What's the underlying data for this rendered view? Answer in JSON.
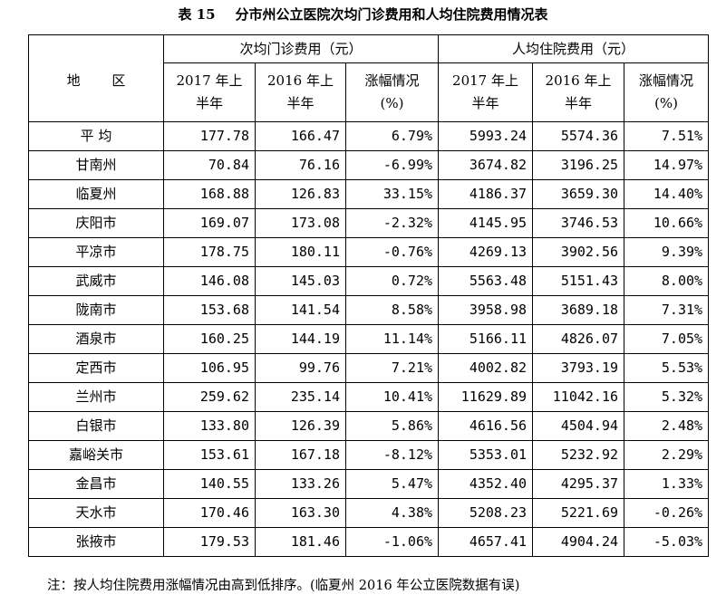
{
  "title": {
    "number": "表 15",
    "text": "分市州公立医院次均门诊费用和人均住院费用情况表"
  },
  "header": {
    "region_label": "地 区",
    "outpatient_group": "次均门诊费用（元）",
    "inpatient_group": "人均住院费用（元）",
    "col_2017": [
      "2017 年上",
      "半年"
    ],
    "col_2016": [
      "2016 年上",
      "半年"
    ],
    "col_change": [
      "涨幅情况",
      "(%)"
    ]
  },
  "rows": [
    {
      "region": "平  均",
      "op2017": "177.78",
      "op2016": "166.47",
      "opchg": "6.79%",
      "ip2017": "5993.24",
      "ip2016": "5574.36",
      "ipchg": "7.51%"
    },
    {
      "region": "甘南州",
      "op2017": "70.84",
      "op2016": "76.16",
      "opchg": "-6.99%",
      "ip2017": "3674.82",
      "ip2016": "3196.25",
      "ipchg": "14.97%"
    },
    {
      "region": "临夏州",
      "op2017": "168.88",
      "op2016": "126.83",
      "opchg": "33.15%",
      "ip2017": "4186.37",
      "ip2016": "3659.30",
      "ipchg": "14.40%"
    },
    {
      "region": "庆阳市",
      "op2017": "169.07",
      "op2016": "173.08",
      "opchg": "-2.32%",
      "ip2017": "4145.95",
      "ip2016": "3746.53",
      "ipchg": "10.66%"
    },
    {
      "region": "平凉市",
      "op2017": "178.75",
      "op2016": "180.11",
      "opchg": "-0.76%",
      "ip2017": "4269.13",
      "ip2016": "3902.56",
      "ipchg": "9.39%"
    },
    {
      "region": "武威市",
      "op2017": "146.08",
      "op2016": "145.03",
      "opchg": "0.72%",
      "ip2017": "5563.48",
      "ip2016": "5151.43",
      "ipchg": "8.00%"
    },
    {
      "region": "陇南市",
      "op2017": "153.68",
      "op2016": "141.54",
      "opchg": "8.58%",
      "ip2017": "3958.98",
      "ip2016": "3689.18",
      "ipchg": "7.31%"
    },
    {
      "region": "酒泉市",
      "op2017": "160.25",
      "op2016": "144.19",
      "opchg": "11.14%",
      "ip2017": "5166.11",
      "ip2016": "4826.07",
      "ipchg": "7.05%"
    },
    {
      "region": "定西市",
      "op2017": "106.95",
      "op2016": "99.76",
      "opchg": "7.21%",
      "ip2017": "4002.82",
      "ip2016": "3793.19",
      "ipchg": "5.53%"
    },
    {
      "region": "兰州市",
      "op2017": "259.62",
      "op2016": "235.14",
      "opchg": "10.41%",
      "ip2017": "11629.89",
      "ip2016": "11042.16",
      "ipchg": "5.32%"
    },
    {
      "region": "白银市",
      "op2017": "133.80",
      "op2016": "126.39",
      "opchg": "5.86%",
      "ip2017": "4616.56",
      "ip2016": "4504.94",
      "ipchg": "2.48%"
    },
    {
      "region": "嘉峪关市",
      "op2017": "153.61",
      "op2016": "167.18",
      "opchg": "-8.12%",
      "ip2017": "5353.01",
      "ip2016": "5232.92",
      "ipchg": "2.29%"
    },
    {
      "region": "金昌市",
      "op2017": "140.55",
      "op2016": "133.26",
      "opchg": "5.47%",
      "ip2017": "4352.40",
      "ip2016": "4295.37",
      "ipchg": "1.33%"
    },
    {
      "region": "天水市",
      "op2017": "170.46",
      "op2016": "163.30",
      "opchg": "4.38%",
      "ip2017": "5208.23",
      "ip2016": "5221.69",
      "ipchg": "-0.26%"
    },
    {
      "region": "张掖市",
      "op2017": "179.53",
      "op2016": "181.46",
      "opchg": "-1.06%",
      "ip2017": "4657.41",
      "ip2016": "4904.24",
      "ipchg": "-5.03%"
    }
  ],
  "note": "注：按人均住院费用涨幅情况由高到低排序。(临夏州 2016 年公立医院数据有误)"
}
